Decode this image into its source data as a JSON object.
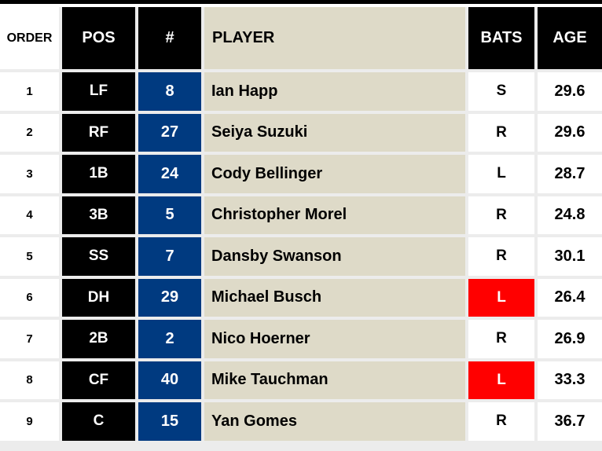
{
  "headers": {
    "order": "ORDER",
    "pos": "POS",
    "number": "#",
    "player": "PLAYER",
    "bats": "BATS",
    "age": "AGE"
  },
  "colors": {
    "header_bg": "#000000",
    "number_bg": "#003a80",
    "player_bg": "#dedac8",
    "bats_highlight": "#ff0000"
  },
  "rows": [
    {
      "order": "1",
      "pos": "LF",
      "number": "8",
      "player": "Ian Happ",
      "bats": "S",
      "age": "29.6",
      "bats_highlight": false
    },
    {
      "order": "2",
      "pos": "RF",
      "number": "27",
      "player": "Seiya Suzuki",
      "bats": "R",
      "age": "29.6",
      "bats_highlight": false
    },
    {
      "order": "3",
      "pos": "1B",
      "number": "24",
      "player": "Cody Bellinger",
      "bats": "L",
      "age": "28.7",
      "bats_highlight": false
    },
    {
      "order": "4",
      "pos": "3B",
      "number": "5",
      "player": "Christopher Morel",
      "bats": "R",
      "age": "24.8",
      "bats_highlight": false
    },
    {
      "order": "5",
      "pos": "SS",
      "number": "7",
      "player": "Dansby Swanson",
      "bats": "R",
      "age": "30.1",
      "bats_highlight": false
    },
    {
      "order": "6",
      "pos": "DH",
      "number": "29",
      "player": "Michael Busch",
      "bats": "L",
      "age": "26.4",
      "bats_highlight": true
    },
    {
      "order": "7",
      "pos": "2B",
      "number": "2",
      "player": "Nico Hoerner",
      "bats": "R",
      "age": "26.9",
      "bats_highlight": false
    },
    {
      "order": "8",
      "pos": "CF",
      "number": "40",
      "player": "Mike Tauchman",
      "bats": "L",
      "age": "33.3",
      "bats_highlight": true
    },
    {
      "order": "9",
      "pos": "C",
      "number": "15",
      "player": "Yan Gomes",
      "bats": "R",
      "age": "36.7",
      "bats_highlight": false
    }
  ]
}
